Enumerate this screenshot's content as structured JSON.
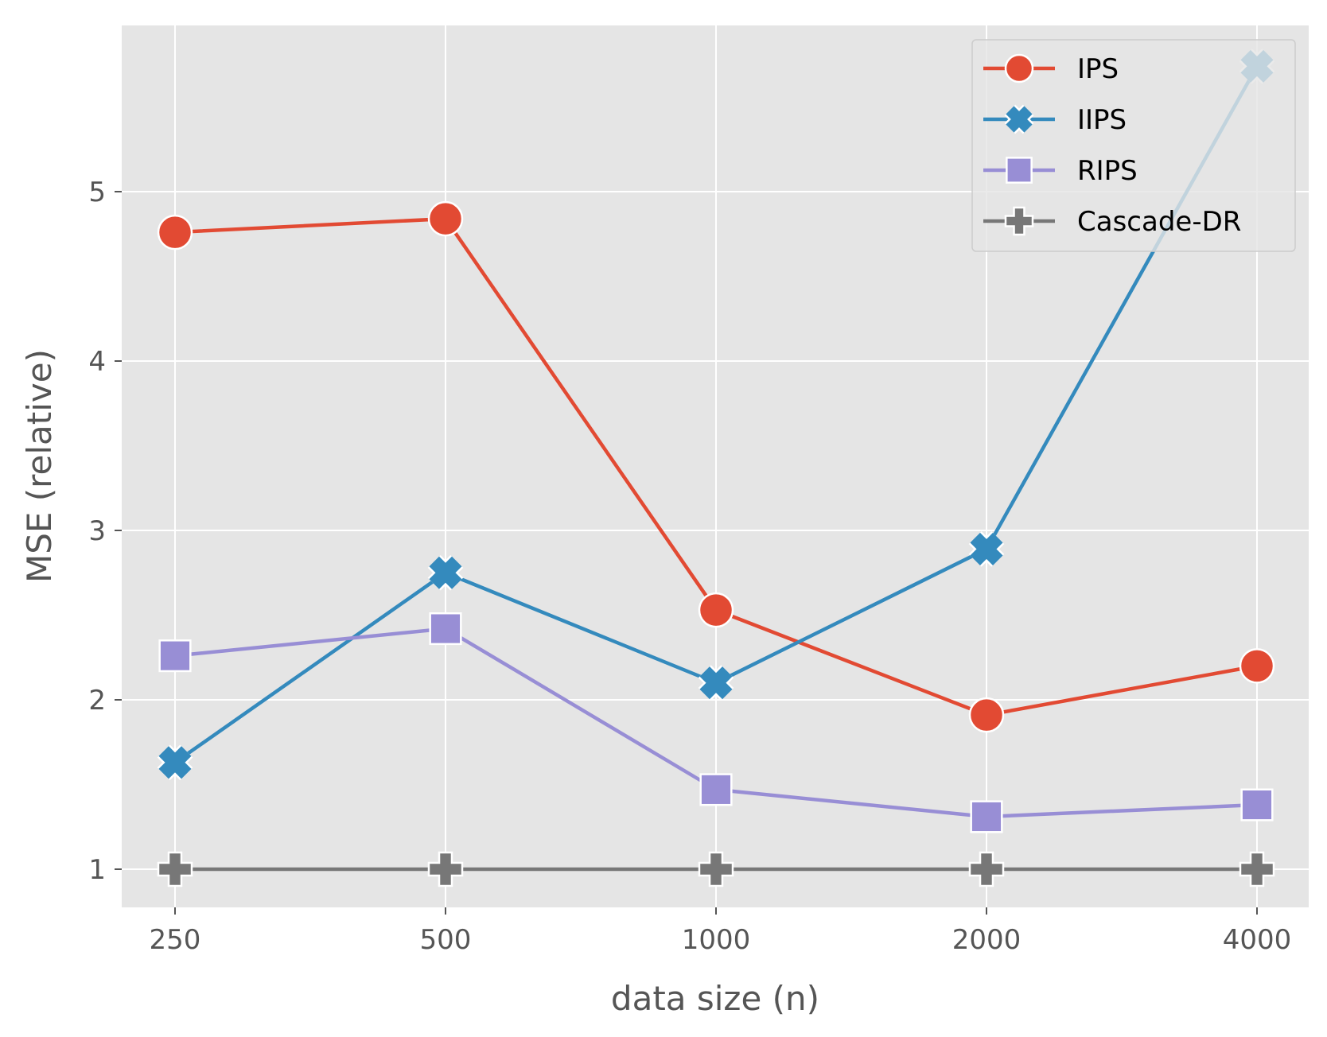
{
  "chart_data": {
    "type": "line",
    "title": "",
    "xlabel": "data size (n)",
    "ylabel": "MSE (relative)",
    "categories": [
      "250",
      "500",
      "1000",
      "2000",
      "4000"
    ],
    "ylim": [
      0.78,
      6.0
    ],
    "yticks": [
      "1",
      "2",
      "3",
      "4",
      "5"
    ],
    "grid": true,
    "legend_position": "top-right",
    "series": [
      {
        "name": "IPS",
        "color": "#E24A33",
        "marker": "circle",
        "values": [
          4.76,
          4.84,
          2.53,
          1.91,
          2.2
        ]
      },
      {
        "name": "IIPS",
        "color": "#348ABD",
        "marker": "x",
        "values": [
          1.63,
          2.75,
          2.1,
          2.89,
          5.74
        ]
      },
      {
        "name": "RIPS",
        "color": "#988ED5",
        "marker": "square",
        "values": [
          2.26,
          2.42,
          1.47,
          1.31,
          1.38
        ]
      },
      {
        "name": "Cascade-DR",
        "color": "#777777",
        "marker": "plus",
        "values": [
          1.0,
          1.0,
          1.0,
          1.0,
          1.0
        ]
      }
    ]
  }
}
